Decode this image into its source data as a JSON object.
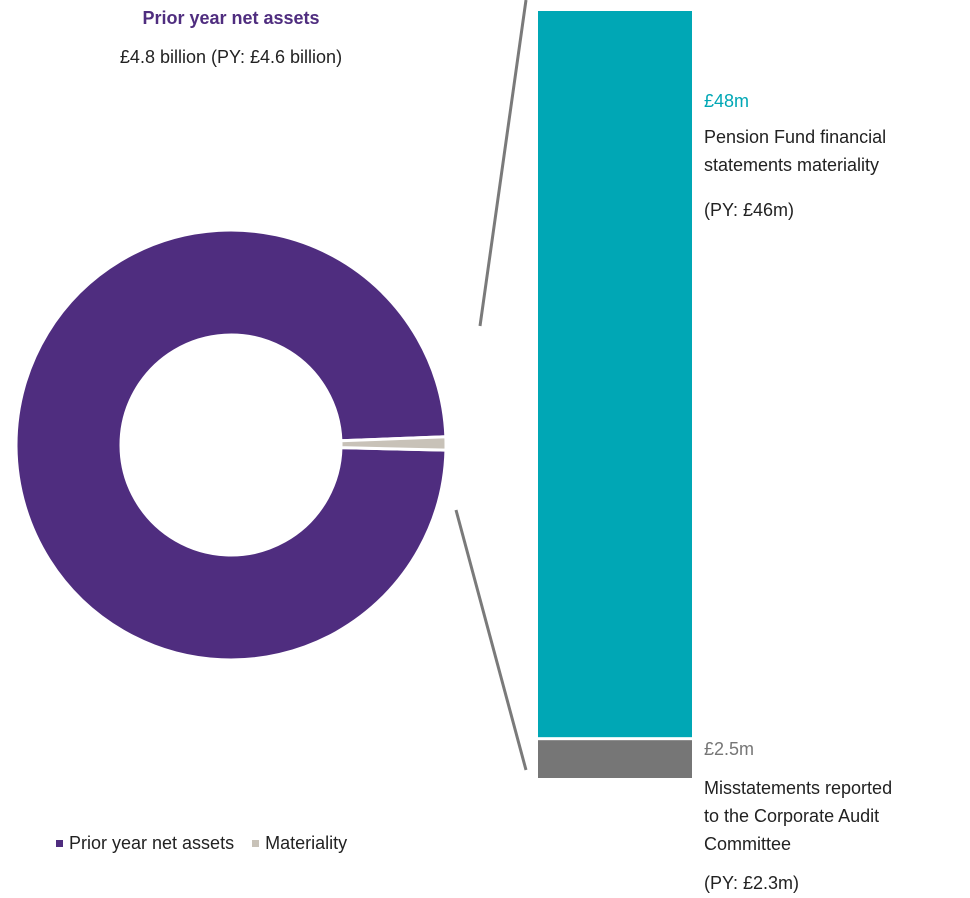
{
  "colors": {
    "net_assets": "#4f2d7f",
    "materiality": "#c8c2b8",
    "pension_bar": "#00a7b5",
    "misstatement_bar": "#767676",
    "connector": "#7a7a7a",
    "donut_gap": "#ffffff"
  },
  "header": {
    "title": "Prior year net assets",
    "value": "£4.8 billion (PY: £4.6 billion)"
  },
  "bars": {
    "pension": {
      "amount": "£48m",
      "line1": "Pension Fund financial",
      "line2": "statements materiality",
      "prior": "(PY: £46m)"
    },
    "misstatements": {
      "amount": "£2.5m",
      "line1": "Misstatements reported",
      "line2": "to the Corporate Audit",
      "line3": "Committee",
      "prior": "(PY: £2.3m)"
    }
  },
  "legend": {
    "items": [
      {
        "label": "Prior year net assets"
      },
      {
        "label": "Materiality"
      }
    ]
  },
  "chart_data": [
    {
      "type": "pie",
      "donut": true,
      "series": [
        {
          "name": "Prior year net assets",
          "value": 4.8
        },
        {
          "name": "Materiality",
          "value": 0.048
        }
      ],
      "legend_position": "bottom-left"
    },
    {
      "type": "bar",
      "stacked": true,
      "categories": [
        "Pension Fund financial statements materiality",
        "Misstatements reported to the Corporate Audit Committee"
      ],
      "values": [
        48,
        2.5
      ],
      "units": "£m",
      "prior_year": [
        46,
        2.3
      ]
    }
  ]
}
